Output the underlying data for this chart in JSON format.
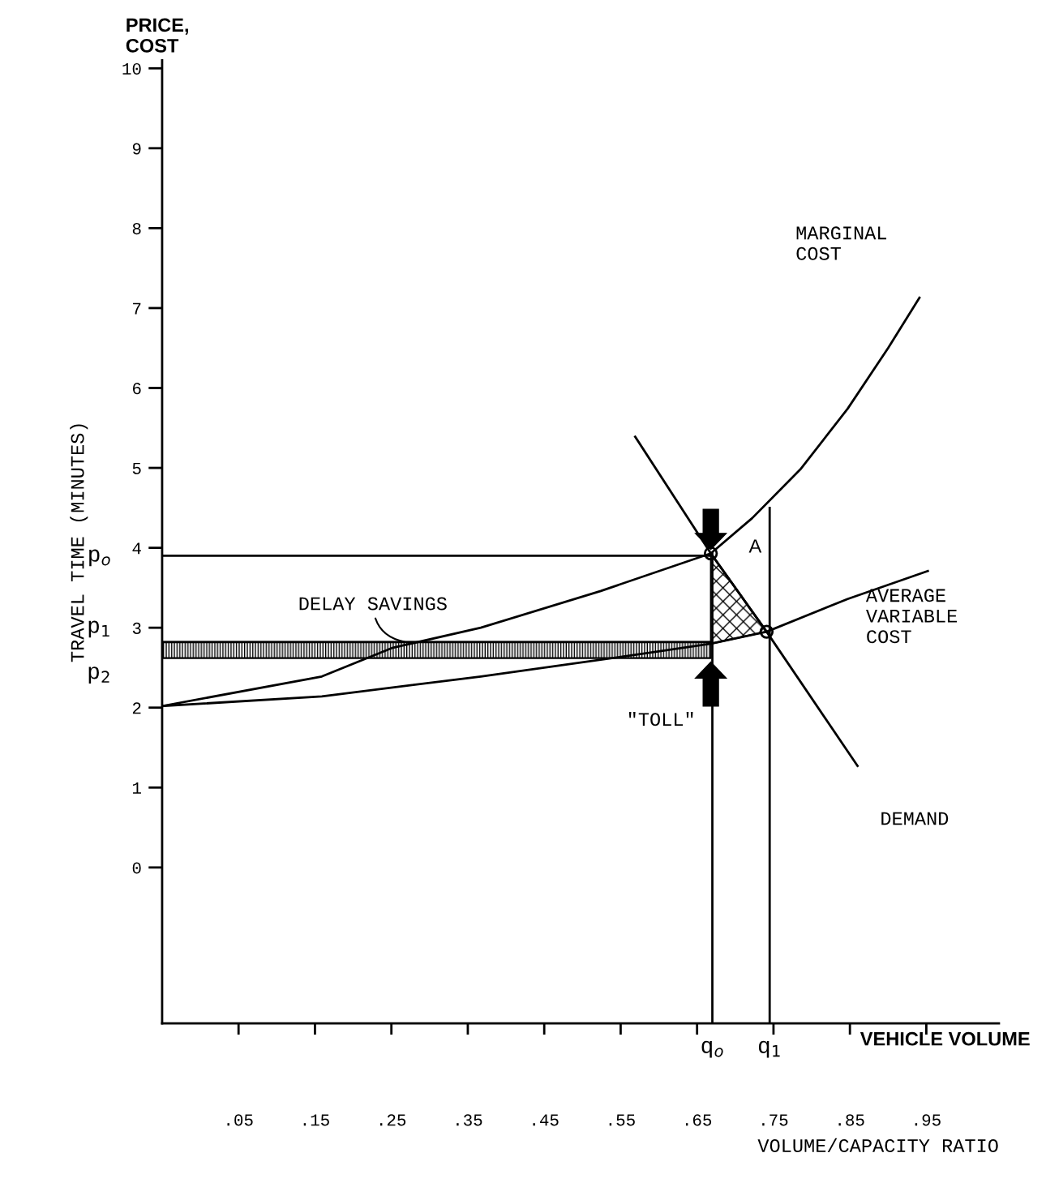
{
  "chart_data": {
    "type": "line",
    "ylabel": "TRAVEL TIME (MINUTES)",
    "xlabel": "VOLUME/CAPACITY RATIO",
    "xlim": [
      -0.05,
      1.045
    ],
    "ylim": [
      -1.95,
      10.1
    ],
    "xticks": [
      {
        "value": 0.05,
        "label": ".05"
      },
      {
        "value": 0.15,
        "label": ".15"
      },
      {
        "value": 0.25,
        "label": ".25"
      },
      {
        "value": 0.35,
        "label": ".35"
      },
      {
        "value": 0.45,
        "label": ".45"
      },
      {
        "value": 0.55,
        "label": ".55"
      },
      {
        "value": 0.65,
        "label": ".65"
      },
      {
        "value": 0.75,
        "label": ".75"
      },
      {
        "value": 0.85,
        "label": ".85"
      },
      {
        "value": 0.95,
        "label": ".95"
      }
    ],
    "yticks": [
      0,
      1,
      2,
      3,
      4,
      5,
      6,
      7,
      8,
      9,
      10
    ],
    "grid": false,
    "legend": false,
    "series": [
      {
        "name": "MARGINAL\nCOST",
        "color": "#000000",
        "x": [
          -0.05,
          0.159,
          0.252,
          0.367,
          0.524,
          0.668,
          0.722,
          0.785,
          0.847,
          0.9,
          0.941
        ],
        "values": [
          2.02,
          2.39,
          2.75,
          3.0,
          3.46,
          3.93,
          4.37,
          4.98,
          5.74,
          6.5,
          7.13
        ]
      },
      {
        "name": "AVERAGE\nVARIABLE\nCOST",
        "color": "#000000",
        "x": [
          -0.05,
          0.159,
          0.367,
          0.576,
          0.668,
          0.741,
          0.847,
          0.952
        ],
        "values": [
          2.02,
          2.14,
          2.39,
          2.67,
          2.8,
          2.95,
          3.36,
          3.71
        ]
      },
      {
        "name": "DEMAND",
        "color": "#000000",
        "x": [
          0.569,
          0.668,
          0.741,
          0.86
        ],
        "values": [
          5.39,
          3.93,
          2.95,
          1.27
        ]
      },
      {
        "color": "#000000",
        "x": [
          -0.05,
          0.668
        ],
        "values": [
          3.9,
          3.9
        ]
      },
      {
        "color": "#000000",
        "x": [
          0.67,
          0.67
        ],
        "values": [
          -1.95,
          3.93
        ]
      },
      {
        "color": "#000000",
        "x": [
          0.745,
          0.745
        ],
        "values": [
          -1.95,
          4.5
        ]
      },
      {
        "color": "#000000",
        "x": [
          -0.05,
          0.668
        ],
        "values": [
          2.82,
          2.82
        ],
        "lower": [
          2.62,
          2.62
        ],
        "upper": [
          2.82,
          2.82
        ]
      },
      {
        "color": "#000000",
        "x": [
          0.668,
          0.741
        ],
        "values": [
          3.93,
          2.95
        ],
        "lower": [
          2.8,
          2.95
        ],
        "upper": [
          3.93,
          2.95
        ]
      },
      {
        "type": "scatter",
        "color": "#000000",
        "marker": "circle",
        "x": [
          0.668,
          0.741
        ],
        "values": [
          3.93,
          2.95
        ]
      }
    ],
    "annotations": [
      "PRICE,\nCOST",
      "VEHICLE VOLUME",
      "A",
      {
        "text": "p$_{o}$",
        "x": -0.05,
        "y": 3.9
      },
      {
        "text": "p$_{1}$",
        "x": -0.05,
        "y": 2.82
      },
      {
        "text": "p$_{2}$",
        "x": -0.05,
        "y": 2.62
      },
      {
        "text": "q$_{o}$",
        "x": 0.67,
        "y": -1.95
      },
      {
        "text": "q$_{1}$",
        "x": 0.745,
        "y": -1.95
      },
      {
        "text": "DELAY SAVINGS",
        "x": 0.27,
        "y": 2.82
      },
      {
        "text": "\"TOLL\"",
        "x": 0.67,
        "y": 2.3
      }
    ]
  }
}
